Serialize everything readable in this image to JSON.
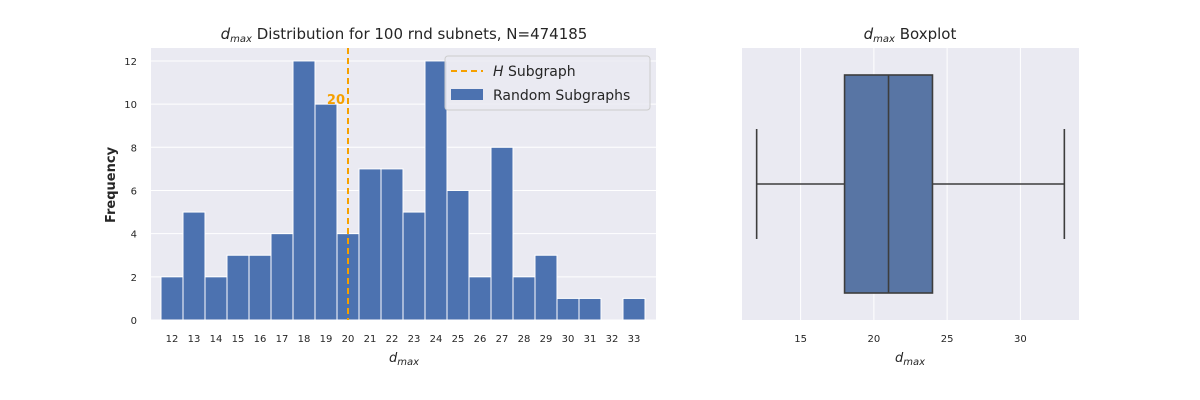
{
  "chart_data": [
    {
      "type": "bar",
      "title": {
        "var": "d",
        "sub": "max",
        "text": " Distribution for 100 rnd subnets, N=474185"
      },
      "xlabel": {
        "var": "d",
        "sub": "max"
      },
      "ylabel": "Frequency",
      "categories": [
        "12",
        "13",
        "14",
        "15",
        "16",
        "17",
        "18",
        "19",
        "20",
        "21",
        "22",
        "23",
        "24",
        "25",
        "26",
        "27",
        "28",
        "29",
        "30",
        "31",
        "32",
        "33"
      ],
      "series": [
        {
          "name": "Random Subgraphs",
          "values": [
            2,
            5,
            2,
            3,
            3,
            4,
            12,
            10,
            4,
            7,
            7,
            5,
            12,
            6,
            2,
            8,
            2,
            3,
            1,
            1,
            0,
            1
          ]
        }
      ],
      "yticks": [
        "0",
        "2",
        "4",
        "6",
        "8",
        "10",
        "12"
      ],
      "ylim": [
        0,
        12.6
      ],
      "vline": {
        "value": 20,
        "label": "20",
        "legend_var": "H",
        "legend_text": " Subgraph"
      },
      "legend_position": "upper-right",
      "grid": true,
      "colors": {
        "bar": "#4c72b0",
        "vline": "#f5a000",
        "axes_bg": "#eaeaf2",
        "grid": "#ffffff"
      }
    },
    {
      "type": "boxplot",
      "title": {
        "var": "d",
        "sub": "max",
        "text": " Boxplot"
      },
      "xlabel": {
        "var": "d",
        "sub": "max"
      },
      "min": 12,
      "q1": 18,
      "median": 21,
      "q3": 24,
      "max": 33,
      "xticks": [
        "15",
        "20",
        "25",
        "30"
      ],
      "xlim": [
        11.0,
        34.0
      ],
      "grid": true,
      "colors": {
        "box": "#5875a4",
        "line": "#3d3d3d",
        "axes_bg": "#eaeaf2",
        "grid": "#ffffff"
      }
    }
  ]
}
